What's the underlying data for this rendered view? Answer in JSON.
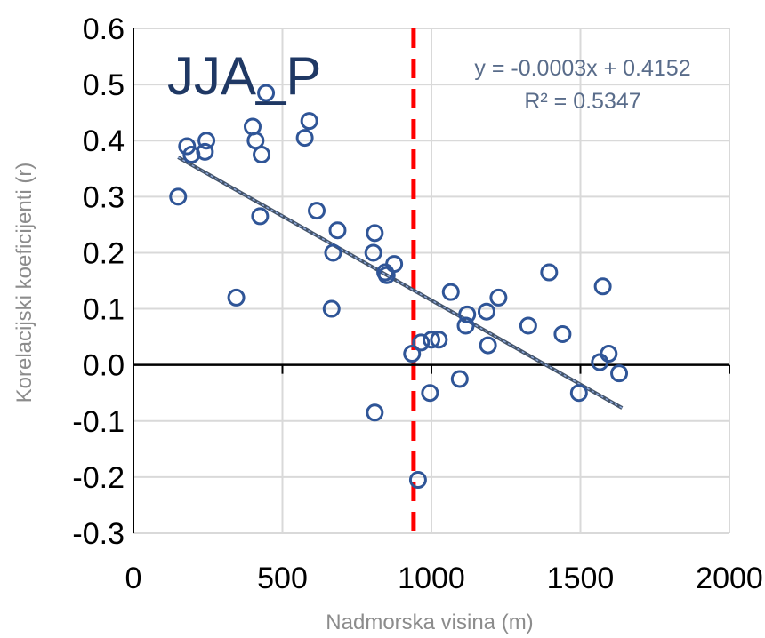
{
  "chart_data": {
    "type": "scatter",
    "title": "JJA_P",
    "xlabel": "Nadmorska visina (m)",
    "ylabel": "Korelacijski koeficijenti (r)",
    "xlim": [
      0,
      2000
    ],
    "ylim": [
      -0.3,
      0.6
    ],
    "x_ticks": [
      "0",
      "500",
      "1000",
      "1500",
      "2000"
    ],
    "y_ticks": [
      "0.6",
      "0.5",
      "0.4",
      "0.3",
      "0.2",
      "0.1",
      "0.0",
      "-0.1",
      "-0.2",
      "-0.3"
    ],
    "grid": true,
    "legend": "none",
    "marker_color": "#2f5597",
    "reference_line": {
      "x": 940,
      "color": "#ff0000",
      "style": "dashed"
    },
    "trendline": {
      "equation": "y = -0.0003x + 0.4152",
      "r2": "R² = 0.5347",
      "slope": -0.0003,
      "intercept": 0.4152,
      "x_range": [
        150,
        1640
      ],
      "color": "#44546a"
    },
    "series": [
      {
        "points": [
          [
            150,
            0.3
          ],
          [
            180,
            0.39
          ],
          [
            195,
            0.375
          ],
          [
            240,
            0.38
          ],
          [
            245,
            0.4
          ],
          [
            345,
            0.12
          ],
          [
            400,
            0.425
          ],
          [
            410,
            0.4
          ],
          [
            425,
            0.265
          ],
          [
            430,
            0.375
          ],
          [
            445,
            0.485
          ],
          [
            575,
            0.405
          ],
          [
            590,
            0.435
          ],
          [
            615,
            0.275
          ],
          [
            665,
            0.1
          ],
          [
            670,
            0.2
          ],
          [
            685,
            0.24
          ],
          [
            805,
            0.2
          ],
          [
            810,
            0.235
          ],
          [
            810,
            -0.085
          ],
          [
            845,
            0.165
          ],
          [
            850,
            0.16
          ],
          [
            875,
            0.18
          ],
          [
            935,
            0.02
          ],
          [
            955,
            -0.205
          ],
          [
            965,
            0.04
          ],
          [
            995,
            -0.05
          ],
          [
            1000,
            0.045
          ],
          [
            1025,
            0.045
          ],
          [
            1065,
            0.13
          ],
          [
            1095,
            -0.025
          ],
          [
            1115,
            0.07
          ],
          [
            1120,
            0.09
          ],
          [
            1185,
            0.095
          ],
          [
            1190,
            0.035
          ],
          [
            1225,
            0.12
          ],
          [
            1325,
            0.07
          ],
          [
            1395,
            0.165
          ],
          [
            1440,
            0.055
          ],
          [
            1495,
            -0.05
          ],
          [
            1565,
            0.005
          ],
          [
            1575,
            0.14
          ],
          [
            1595,
            0.02
          ],
          [
            1630,
            -0.015
          ]
        ]
      }
    ]
  }
}
